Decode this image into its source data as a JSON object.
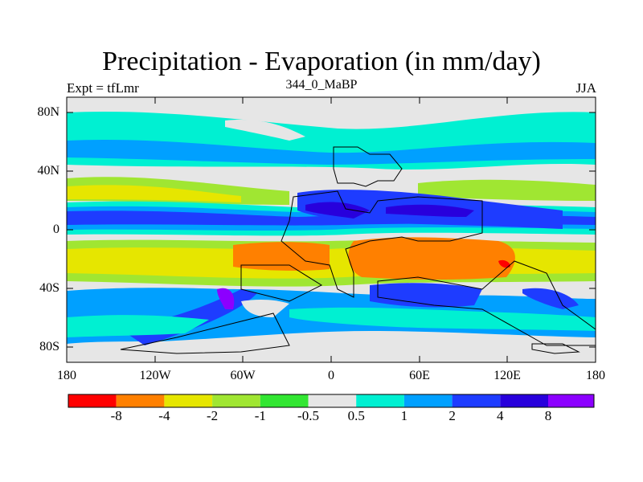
{
  "title": "Precipitation - Evaporation (in mm/day)",
  "subtitle_left": "Expt = tfLmr",
  "subtitle_center": "344_0_MaBP",
  "subtitle_right": "JJA",
  "y_ticks": [
    "80N",
    "40N",
    "0",
    "40S",
    "80S"
  ],
  "x_ticks": [
    "180",
    "120W",
    "60W",
    "0",
    "60E",
    "120E",
    "180"
  ],
  "colorbar": {
    "colors": [
      "#ff0000",
      "#ff8000",
      "#e6e600",
      "#a0e632",
      "#32e632",
      "#e6e6e6",
      "#00f0d2",
      "#00a0ff",
      "#1e3cff",
      "#2800dc",
      "#8c00ff"
    ],
    "labels": [
      "-8",
      "-4",
      "-2",
      "-1",
      "-0.5",
      "0.5",
      "1",
      "2",
      "4",
      "8"
    ]
  }
}
